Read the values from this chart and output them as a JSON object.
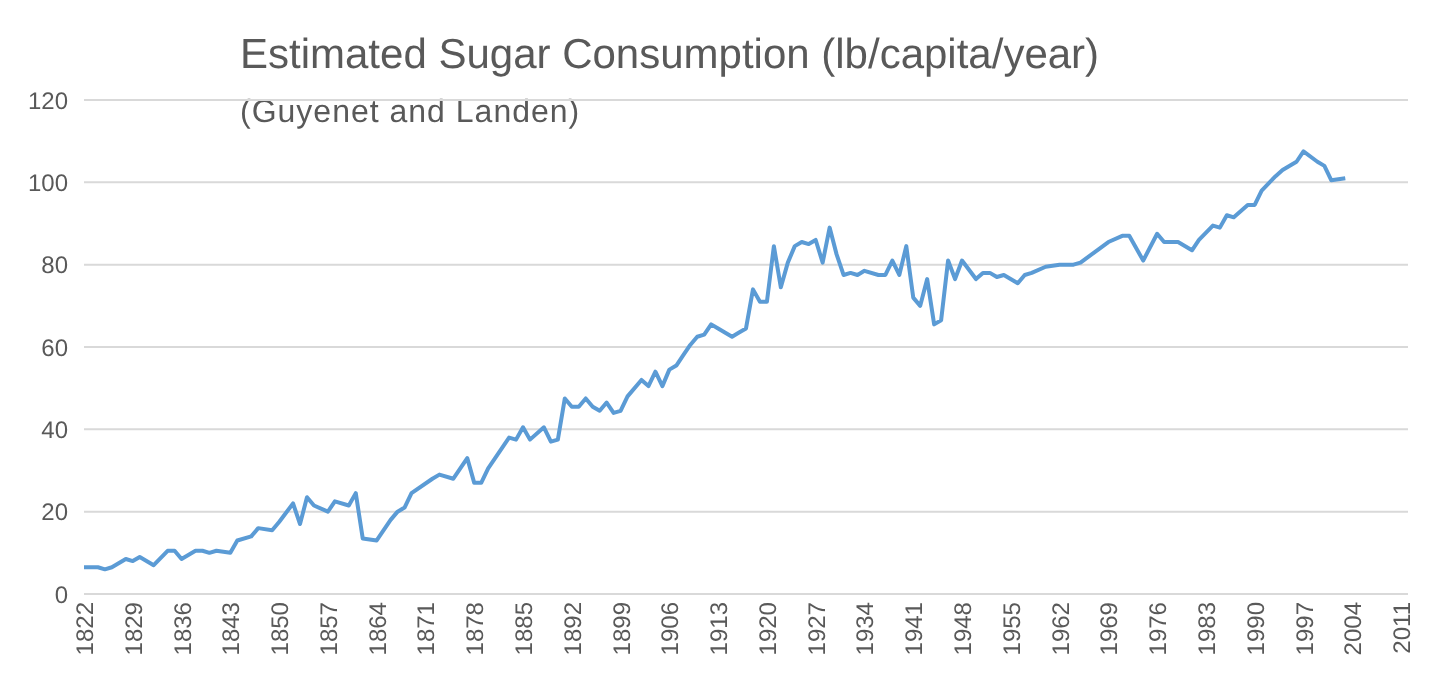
{
  "chart_data": {
    "type": "line",
    "title": "Estimated Sugar Consumption (lb/capita/year)",
    "subtitle": "(Guyenet and Landen)",
    "x": [
      1822,
      1824,
      1825,
      1826,
      1828,
      1829,
      1830,
      1832,
      1834,
      1835,
      1836,
      1838,
      1839,
      1840,
      1841,
      1843,
      1844,
      1846,
      1847,
      1849,
      1850,
      1852,
      1853,
      1854,
      1855,
      1857,
      1858,
      1860,
      1861,
      1862,
      1864,
      1866,
      1867,
      1868,
      1869,
      1872,
      1873,
      1875,
      1877,
      1878,
      1879,
      1880,
      1882,
      1883,
      1884,
      1885,
      1886,
      1888,
      1889,
      1890,
      1891,
      1892,
      1893,
      1894,
      1895,
      1896,
      1897,
      1898,
      1899,
      1900,
      1902,
      1903,
      1904,
      1905,
      1906,
      1907,
      1908,
      1909,
      1910,
      1911,
      1912,
      1913,
      1915,
      1916,
      1917,
      1918,
      1919,
      1920,
      1921,
      1922,
      1923,
      1924,
      1925,
      1926,
      1927,
      1928,
      1929,
      1930,
      1931,
      1932,
      1933,
      1934,
      1936,
      1937,
      1938,
      1939,
      1940,
      1941,
      1942,
      1943,
      1944,
      1945,
      1946,
      1947,
      1948,
      1950,
      1951,
      1952,
      1953,
      1954,
      1956,
      1957,
      1958,
      1960,
      1962,
      1964,
      1965,
      1967,
      1969,
      1971,
      1972,
      1974,
      1976,
      1977,
      1979,
      1981,
      1982,
      1984,
      1985,
      1986,
      1987,
      1989,
      1990,
      1991,
      1993,
      1994,
      1996,
      1997,
      1999,
      2000,
      2001,
      2003
    ],
    "series": [
      {
        "color": "#5b9bd5",
        "values": [
          6.5,
          6.5,
          6,
          6.5,
          8.5,
          8,
          9,
          7,
          10.5,
          10.5,
          8.5,
          10.5,
          10.5,
          10,
          10.5,
          10,
          13,
          14,
          16,
          15.5,
          17.5,
          22,
          17,
          23.5,
          21.5,
          20,
          22.5,
          21.5,
          24.5,
          13.5,
          13,
          18,
          20,
          21,
          24.5,
          28,
          29,
          28,
          33,
          27,
          27,
          30.5,
          35.5,
          38,
          37.5,
          40.5,
          37.5,
          40.5,
          37,
          37.5,
          47.5,
          45.5,
          45.5,
          47.5,
          45.5,
          44.5,
          46.5,
          44,
          44.5,
          48,
          52,
          50.5,
          54,
          50.5,
          54.5,
          55.5,
          58,
          60.5,
          62.5,
          63,
          65.5,
          64.5,
          62.5,
          63.5,
          64.5,
          74,
          71,
          71,
          84.5,
          74.5,
          80.5,
          84.5,
          85.5,
          85,
          86,
          80.5,
          89,
          82.5,
          77.5,
          78,
          77.5,
          78.5,
          77.5,
          77.5,
          81,
          77.5,
          84.5,
          72,
          70,
          76.5,
          65.5,
          66.5,
          81,
          76.5,
          81,
          76.5,
          78,
          78,
          77,
          77.5,
          75.5,
          77.5,
          78,
          79.5,
          80,
          80,
          80.5,
          83,
          85.5,
          87,
          87,
          81,
          87.5,
          85.5,
          85.5,
          83.5,
          86,
          89.5,
          89,
          92,
          91.5,
          94.5,
          94.5,
          98,
          101.5,
          103,
          105,
          107.5,
          105,
          104,
          100.5,
          101
        ]
      }
    ],
    "xlim": [
      1822,
      2012
    ],
    "xticks": [
      1822,
      1829,
      1836,
      1843,
      1850,
      1857,
      1864,
      1871,
      1878,
      1885,
      1892,
      1899,
      1906,
      1913,
      1920,
      1927,
      1934,
      1941,
      1948,
      1955,
      1962,
      1969,
      1976,
      1983,
      1990,
      1997,
      2004,
      2011
    ],
    "ylim": [
      0,
      120
    ],
    "yticks": [
      0,
      20,
      40,
      60,
      80,
      100,
      120
    ],
    "grid": "y",
    "legend": false,
    "marker": "none",
    "line_style": "solid"
  }
}
